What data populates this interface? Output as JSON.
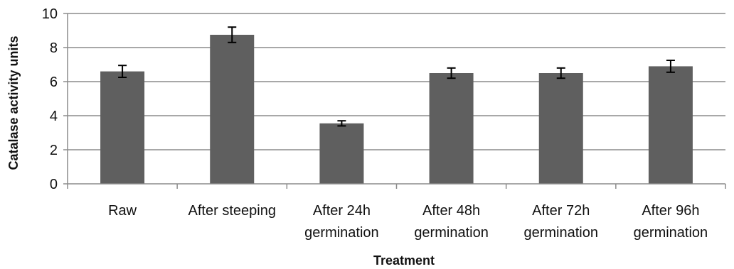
{
  "chart_data": {
    "type": "bar",
    "categories": [
      [
        "Raw"
      ],
      [
        "After steeping"
      ],
      [
        "After 24h",
        "germination"
      ],
      [
        "After 48h",
        "germination"
      ],
      [
        "After 72h",
        "germination"
      ],
      [
        "After 96h",
        "germination"
      ]
    ],
    "values": [
      6.6,
      8.75,
      3.55,
      6.5,
      6.5,
      6.9
    ],
    "errors": [
      0.35,
      0.45,
      0.15,
      0.3,
      0.3,
      0.35
    ],
    "xlabel": "Treatment",
    "ylabel": "Catalase activity units",
    "ylim": [
      0,
      10
    ],
    "yticks": [
      0,
      2,
      4,
      6,
      8,
      10
    ],
    "grid": true,
    "legend": "none",
    "colors": {
      "bar": "#5f5f5f",
      "grid": "#8c8c8c",
      "axis": "#8c8c8c",
      "error": "#000000"
    }
  }
}
